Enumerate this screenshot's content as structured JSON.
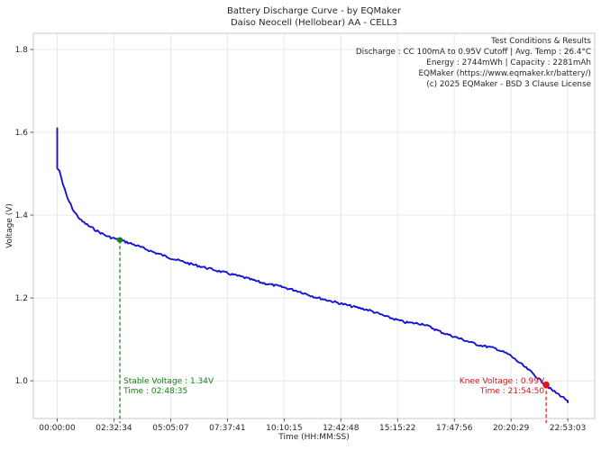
{
  "title": {
    "line1": "Battery Discharge Curve - by EQMaker",
    "line2": "Daiso Neocell (Hellobear) AA - CELL3"
  },
  "info_box": {
    "lines": [
      "Test Conditions & Results",
      "Discharge : CC 100mA to 0.95V Cutoff | Avg. Temp : 26.4°C",
      "Energy : 2744mWh | Capacity : 2281mAh",
      "EQMaker (https://www.eqmaker.kr/battery/)",
      "(c) 2025 EQMaker - BSD 3 Clause License"
    ]
  },
  "chart_data": {
    "type": "line",
    "title": "Battery Discharge Curve - by EQMaker",
    "subtitle": "Daiso Neocell (Hellobear) AA - CELL3",
    "xlabel": "Time (HH:MM:SS)",
    "ylabel": "Voltage (V)",
    "x_unit": "hours",
    "xlim": [
      -1.07,
      24.09
    ],
    "ylim": [
      0.909,
      1.839
    ],
    "grid": true,
    "x_ticks_hours": [
      0,
      2.5426,
      5.0853,
      7.628,
      10.1708,
      12.7133,
      15.2561,
      17.7989,
      20.3414,
      22.8842
    ],
    "x_tick_labels": [
      "00:00:00",
      "02:32:34",
      "05:05:07",
      "07:37:41",
      "10:10:15",
      "12:42:48",
      "15:15:22",
      "17:47:56",
      "20:20:29",
      "22:53:03"
    ],
    "y_ticks": [
      1.0,
      1.2,
      1.4,
      1.6,
      1.8
    ],
    "y_tick_labels": [
      "1.0",
      "1.2",
      "1.4",
      "1.6",
      "1.8"
    ],
    "series": [
      {
        "name": "discharge-curve",
        "color": "#1414d6",
        "points": [
          [
            0,
            1.61
          ],
          [
            0,
            1.513
          ],
          [
            0.1,
            1.507
          ],
          [
            0.26,
            1.474
          ],
          [
            0.46,
            1.441
          ],
          [
            0.75,
            1.409
          ],
          [
            1.07,
            1.387
          ],
          [
            1.47,
            1.372
          ],
          [
            1.88,
            1.359
          ],
          [
            2.28,
            1.348
          ],
          [
            2.8097,
            1.34
          ],
          [
            3.49,
            1.328
          ],
          [
            4.3,
            1.311
          ],
          [
            5.11,
            1.296
          ],
          [
            5.92,
            1.283
          ],
          [
            6.73,
            1.272
          ],
          [
            7.53,
            1.261
          ],
          [
            8.34,
            1.25
          ],
          [
            9.15,
            1.237
          ],
          [
            9.96,
            1.228
          ],
          [
            10.77,
            1.217
          ],
          [
            11.57,
            1.202
          ],
          [
            12.38,
            1.191
          ],
          [
            13.19,
            1.18
          ],
          [
            14.0,
            1.17
          ],
          [
            14.8,
            1.154
          ],
          [
            15.61,
            1.141
          ],
          [
            16.42,
            1.137
          ],
          [
            17.23,
            1.117
          ],
          [
            18.04,
            1.102
          ],
          [
            18.85,
            1.087
          ],
          [
            19.65,
            1.078
          ],
          [
            20.26,
            1.063
          ],
          [
            20.78,
            1.041
          ],
          [
            21.27,
            1.02
          ],
          [
            21.59,
            1.004
          ],
          [
            21.9139,
            0.99
          ],
          [
            22.16,
            0.978
          ],
          [
            22.48,
            0.967
          ],
          [
            22.76,
            0.957
          ],
          [
            22.8842,
            0.952
          ],
          [
            22.8842,
            0.948
          ]
        ]
      }
    ],
    "markers": {
      "stable": {
        "t_hours": 2.8097,
        "voltage": 1.34,
        "color": "#128212",
        "label_lines": [
          "Stable Voltage : 1.34V",
          "Time : 02:48:35"
        ]
      },
      "knee": {
        "t_hours": 21.9139,
        "voltage": 0.99,
        "color": "#e01212",
        "label_lines": [
          "Knee Voltage : 0.99V",
          "Time : 21:54:50"
        ]
      }
    },
    "colors": {
      "grid": "#e8e8e8",
      "spine": "#c9c9c9",
      "tick": "#333333",
      "tick_label": "#262626",
      "background": "#ffffff"
    }
  }
}
